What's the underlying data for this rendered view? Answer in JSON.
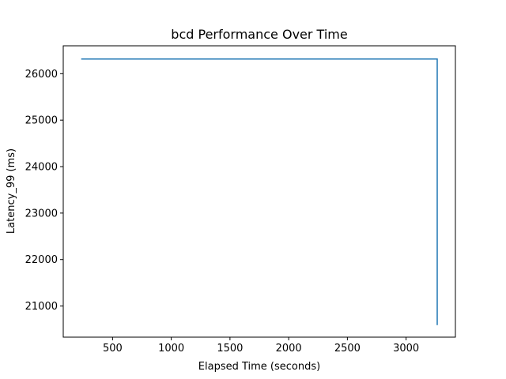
{
  "chart_data": {
    "type": "line",
    "title": "bcd Performance Over Time",
    "xlabel": "Elapsed Time (seconds)",
    "ylabel": "Latency_99 (ms)",
    "xlim": [
      80,
      3420
    ],
    "ylim": [
      20330,
      26600
    ],
    "xticks": [
      500,
      1000,
      1500,
      2000,
      2500,
      3000
    ],
    "yticks": [
      21000,
      22000,
      23000,
      24000,
      25000,
      26000
    ],
    "grid": false,
    "series": [
      {
        "color": "#1f77b4",
        "x": [
          233,
          3265,
          3265
        ],
        "y": [
          26315,
          26315,
          20590
        ]
      }
    ]
  }
}
